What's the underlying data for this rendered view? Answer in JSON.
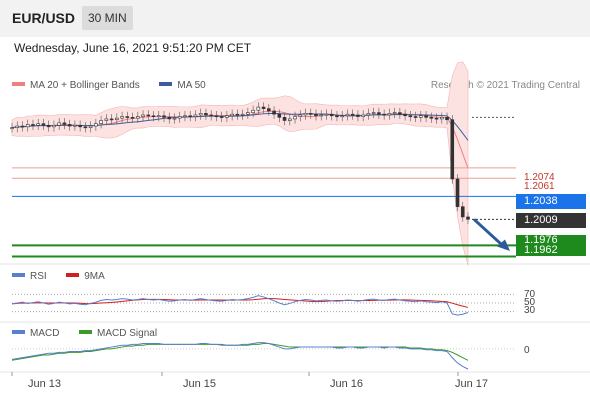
{
  "header": {
    "pair": "EUR/USD",
    "timeframe": "30 MIN"
  },
  "datetime": "Wednesday, June 16, 2021 9:51:20 PM CET",
  "legend_main": [
    {
      "label": "MA 20 + Bollinger Bands",
      "color": "#f08080"
    },
    {
      "label": "MA 50",
      "color": "#3a5f9a"
    }
  ],
  "research": "Research © 2021 Trading Central",
  "levels": [
    {
      "label": "1.2074",
      "value": 1.2074,
      "kind": "resistance",
      "color": "#e8a090"
    },
    {
      "label": "1.2061",
      "value": 1.2061,
      "kind": "resistance",
      "color": "#e8a090"
    },
    {
      "label": "1.2038",
      "value": 1.2038,
      "kind": "pivot",
      "color": "#1a73e8"
    },
    {
      "label": "1.2009",
      "value": 1.2009,
      "kind": "last",
      "color": "#333333"
    },
    {
      "label": "1.1976",
      "value": 1.1976,
      "kind": "support",
      "color": "#1e8a1e"
    },
    {
      "label": "1.1962",
      "value": 1.1962,
      "kind": "support",
      "color": "#1e8a1e"
    }
  ],
  "legend_rsi": [
    {
      "label": "RSI",
      "color": "#5a7fd0"
    },
    {
      "label": "9MA",
      "color": "#d02020"
    }
  ],
  "rsi_levels": [
    "70",
    "50",
    "30"
  ],
  "legend_macd": [
    {
      "label": "MACD",
      "color": "#5a7fd0"
    },
    {
      "label": "MACD Signal",
      "color": "#3a9a2a"
    }
  ],
  "macd_zero": "0",
  "x_labels": [
    "Jun 13",
    "Jun 15",
    "Jun 16",
    "Jun 17"
  ],
  "chart_data": {
    "type": "candlestick",
    "ylim": [
      1.1955,
      1.2165
    ],
    "price_series": [
      1.2125,
      1.2127,
      1.2126,
      1.2129,
      1.2128,
      1.213,
      1.2128,
      1.2126,
      1.2128,
      1.2131,
      1.2129,
      1.2127,
      1.2128,
      1.2126,
      1.2125,
      1.2127,
      1.213,
      1.2134,
      1.2136,
      1.2135,
      1.2137,
      1.2139,
      1.2138,
      1.2137,
      1.2139,
      1.2141,
      1.214,
      1.2139,
      1.214,
      1.2138,
      1.2136,
      1.2137,
      1.2139,
      1.214,
      1.2139,
      1.2141,
      1.2143,
      1.2141,
      1.214,
      1.2139,
      1.2138,
      1.214,
      1.2142,
      1.2141,
      1.2142,
      1.2144,
      1.2147,
      1.2151,
      1.2149,
      1.2146,
      1.2142,
      1.2138,
      1.2134,
      1.2136,
      1.2139,
      1.2141,
      1.2143,
      1.2142,
      1.214,
      1.2141,
      1.2142,
      1.214,
      1.2139,
      1.214,
      1.2142,
      1.2141,
      1.2139,
      1.2141,
      1.2143,
      1.2144,
      1.2142,
      1.2141,
      1.2143,
      1.2144,
      1.2142,
      1.214,
      1.2139,
      1.2138,
      1.214,
      1.2138,
      1.2137,
      1.2136,
      1.2138,
      1.2135,
      1.206,
      1.2025,
      1.2012,
      1.2009
    ],
    "rsi_series": [
      48,
      50,
      52,
      49,
      51,
      53,
      50,
      47,
      49,
      52,
      50,
      48,
      49,
      47,
      46,
      49,
      52,
      56,
      58,
      57,
      58,
      60,
      59,
      57,
      58,
      60,
      58,
      57,
      58,
      56,
      54,
      55,
      57,
      58,
      56,
      58,
      60,
      58,
      56,
      55,
      54,
      56,
      58,
      57,
      58,
      60,
      63,
      67,
      64,
      60,
      55,
      50,
      46,
      49,
      53,
      56,
      58,
      57,
      55,
      56,
      57,
      55,
      54,
      55,
      57,
      56,
      54,
      56,
      58,
      59,
      57,
      56,
      58,
      59,
      57,
      55,
      54,
      53,
      55,
      53,
      52,
      51,
      53,
      50,
      25,
      22,
      24,
      28
    ],
    "macd_series": [
      -12,
      -11,
      -10,
      -9,
      -8,
      -7,
      -6,
      -5,
      -5,
      -4,
      -4,
      -3,
      -3,
      -3,
      -2,
      -2,
      -1,
      0,
      1,
      2,
      3,
      4,
      4,
      5,
      5,
      6,
      6,
      6,
      6,
      5,
      5,
      5,
      5,
      5,
      5,
      5,
      6,
      6,
      5,
      5,
      4,
      4,
      4,
      4,
      5,
      5,
      6,
      7,
      7,
      6,
      4,
      2,
      0,
      0,
      1,
      2,
      2,
      2,
      2,
      2,
      2,
      2,
      1,
      1,
      2,
      2,
      1,
      1,
      2,
      2,
      2,
      1,
      2,
      2,
      1,
      1,
      0,
      0,
      0,
      -1,
      -1,
      -2,
      -2,
      -3,
      -10,
      -16,
      -20,
      -23
    ],
    "macd_signal_series": [
      -13,
      -12,
      -11,
      -10,
      -9,
      -8,
      -7,
      -7,
      -6,
      -5,
      -5,
      -4,
      -4,
      -4,
      -3,
      -3,
      -2,
      -1,
      0,
      0,
      1,
      2,
      3,
      3,
      4,
      4,
      5,
      5,
      5,
      5,
      5,
      5,
      5,
      5,
      5,
      5,
      5,
      5,
      5,
      5,
      5,
      4,
      4,
      4,
      4,
      4,
      5,
      5,
      6,
      6,
      5,
      4,
      3,
      2,
      2,
      2,
      2,
      2,
      2,
      2,
      2,
      2,
      2,
      2,
      2,
      2,
      2,
      2,
      2,
      2,
      2,
      2,
      2,
      2,
      2,
      2,
      1,
      1,
      1,
      0,
      0,
      -1,
      -1,
      -2,
      -4,
      -7,
      -10,
      -13
    ]
  }
}
